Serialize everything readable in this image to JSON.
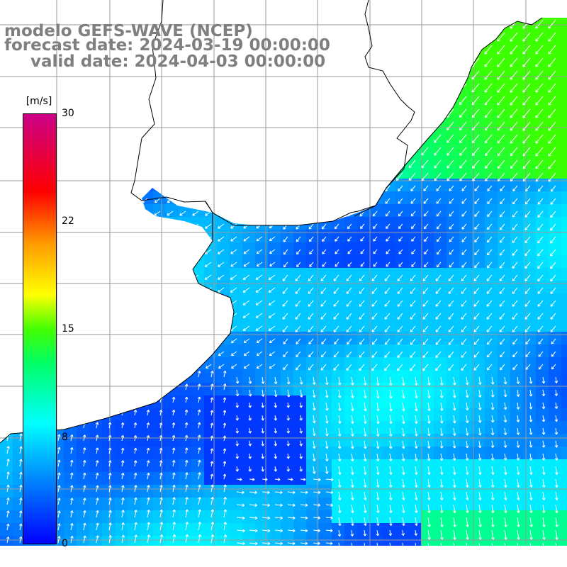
{
  "header": {
    "line1": "modelo GEFS-WAVE (NCEP)",
    "line2": "forecast date: 2024-03-19 00:00:00",
    "line3": "valid date: 2024-04-03 00:00:00"
  },
  "colorbar": {
    "unit": "[m/s]",
    "ticks": [
      "30",
      "22",
      "15",
      "8",
      "0"
    ],
    "tick_values": [
      30,
      22,
      15,
      8,
      0
    ],
    "min": 0,
    "max": 30,
    "colors": [
      "#0000ff",
      "#00b4ff",
      "#00ffff",
      "#00ff66",
      "#44ff00",
      "#ffff00",
      "#ff9900",
      "#ff0000",
      "#cc0088"
    ]
  },
  "map": {
    "variable": "wind speed and direction",
    "land_color": "#ffffff",
    "coastline_color": "#000000",
    "grid_color": "#999999",
    "arrow_color": "#ffffff"
  }
}
